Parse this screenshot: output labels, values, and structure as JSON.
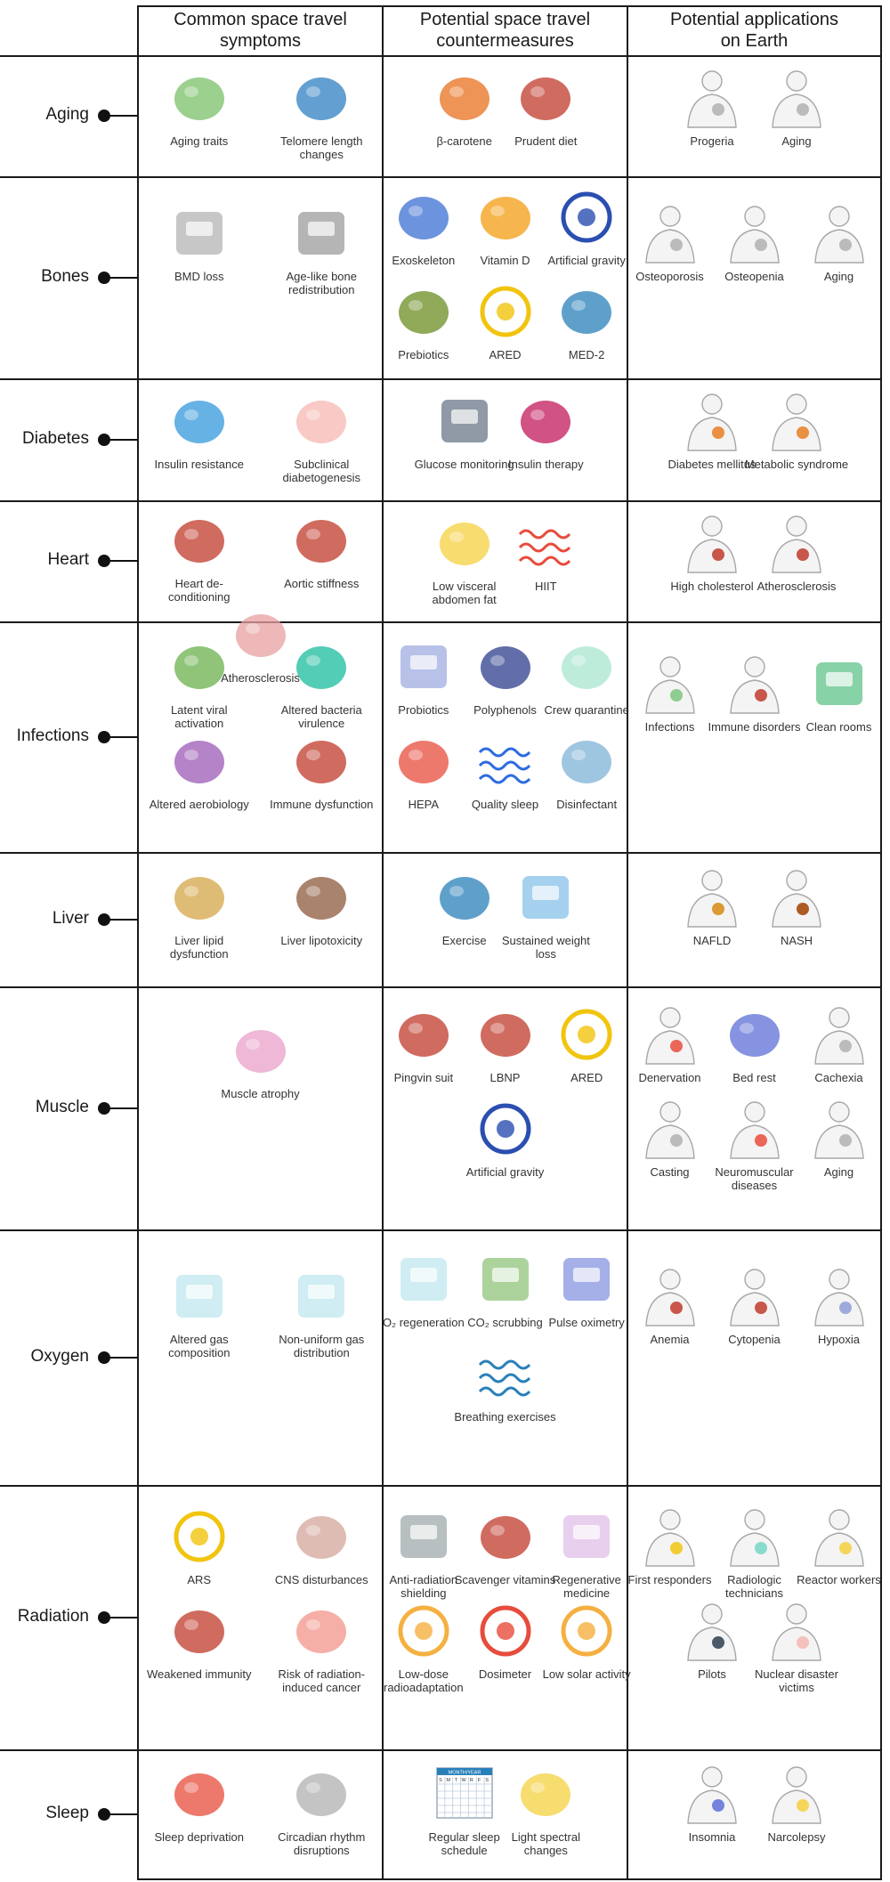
{
  "headers": {
    "symptoms": "Common space travel\nsymptoms",
    "countermeasures": "Potential space travel\ncountermeasures",
    "applications": "Potential applications\non Earth"
  },
  "rows": [
    {
      "label": "Aging",
      "symptoms": [
        {
          "label": "Aging traits",
          "icon": "aging-traits-icon",
          "color": "#7ac06a"
        },
        {
          "label": "Telomere length changes",
          "icon": "chromosome-icon",
          "color": "#2f7fc1"
        }
      ],
      "countermeasures": [
        {
          "label": "β-carotene",
          "icon": "pumpkin-icon",
          "color": "#e8701e"
        },
        {
          "label": "Prudent diet",
          "icon": "vegetables-icon",
          "color": "#c0392b"
        }
      ],
      "applications": [
        {
          "label": "Progeria",
          "icon": "infant-clock-icon",
          "color": "#b0b0b0"
        },
        {
          "label": "Aging",
          "icon": "person-clock-icon",
          "color": "#b0b0b0"
        }
      ]
    },
    {
      "label": "Bones",
      "symptoms": [
        {
          "label": "BMD loss",
          "icon": "bone-cube-icon",
          "color": "#9a9a9a"
        },
        {
          "label": "Age-like bone redistribution",
          "icon": "bone-cube-icon",
          "color": "#7a7a7a"
        }
      ],
      "countermeasures": [
        {
          "label": "Exoskeleton",
          "icon": "exoskeleton-icon",
          "color": "#3b6fd1"
        },
        {
          "label": "Vitamin D",
          "icon": "orange-slice-icon",
          "color": "#f39c12"
        },
        {
          "label": "Artificial gravity",
          "icon": "gravity-wheel-icon",
          "color": "#2b4fb0"
        },
        {
          "label": "Prebiotics",
          "icon": "root-vegetable-icon",
          "color": "#6b8e23"
        },
        {
          "label": "ARED",
          "icon": "squat-rack-icon",
          "color": "#f1c40f"
        },
        {
          "label": "MED-2",
          "icon": "exercise-machine-icon",
          "color": "#2980b9"
        }
      ],
      "applications": [
        {
          "label": "Osteoporosis",
          "icon": "ribcage-icon",
          "color": "#b0b0b0"
        },
        {
          "label": "Osteopenia",
          "icon": "ribcage-icon",
          "color": "#b0b0b0"
        },
        {
          "label": "Aging",
          "icon": "person-clock-icon",
          "color": "#b0b0b0"
        }
      ]
    },
    {
      "label": "Diabetes",
      "symptoms": [
        {
          "label": "Insulin resistance",
          "icon": "insulin-receptor-icon",
          "color": "#3498db"
        },
        {
          "label": "Subclinical diabetogenesis",
          "icon": "pancreas-icon",
          "color": "#f5b7b1"
        }
      ],
      "countermeasures": [
        {
          "label": "Glucose monitoring",
          "icon": "glucometer-icon",
          "color": "#34495e"
        },
        {
          "label": "Insulin therapy",
          "icon": "insulin-pen-icon",
          "color": "#c2185b"
        }
      ],
      "applications": [
        {
          "label": "Diabetes mellitus",
          "icon": "torso-pancreas-icon",
          "color": "#e67e22"
        },
        {
          "label": "Metabolic syndrome",
          "icon": "torso-organs-icon",
          "color": "#e67e22"
        }
      ]
    },
    {
      "label": "Heart",
      "symptoms": [
        {
          "label": "Heart de-conditioning",
          "icon": "heart-icon",
          "color": "#c0392b"
        },
        {
          "label": "Aortic stiffness",
          "icon": "artery-section-icon",
          "color": "#c0392b"
        },
        {
          "label": "Atherosclerosis",
          "icon": "plaque-artery-icon",
          "color": "#e8a0a0"
        }
      ],
      "countermeasures": [
        {
          "label": "Low visceral abdomen fat",
          "icon": "intestine-fat-icon",
          "color": "#f4d03f"
        },
        {
          "label": "HIIT",
          "icon": "ecg-icon",
          "color": "#e74c3c"
        }
      ],
      "applications": [
        {
          "label": "High cholesterol",
          "icon": "torso-heart-icon",
          "color": "#c0392b"
        },
        {
          "label": "Atherosclerosis",
          "icon": "torso-heart-icon",
          "color": "#c0392b"
        }
      ]
    },
    {
      "label": "Infections",
      "symptoms": [
        {
          "label": "Latent viral activation",
          "icon": "virus-icon",
          "color": "#6ab04c"
        },
        {
          "label": "Altered bacteria virulence",
          "icon": "bacteria-icon",
          "color": "#1abc9c"
        },
        {
          "label": "Altered aerobiology",
          "icon": "fungus-icon",
          "color": "#9b59b6"
        },
        {
          "label": "Immune dysfunction",
          "icon": "antibody-icon",
          "color": "#c0392b"
        }
      ],
      "countermeasures": [
        {
          "label": "Probiotics",
          "icon": "yogurt-icon",
          "color": "#7f8fd6"
        },
        {
          "label": "Polyphenols",
          "icon": "blueberries-icon",
          "color": "#2c3e8c"
        },
        {
          "label": "Crew quarantine",
          "icon": "mask-icon",
          "color": "#a8e6cf"
        },
        {
          "label": "HEPA",
          "icon": "filter-funnel-icon",
          "color": "#e74c3c"
        },
        {
          "label": "Quality sleep",
          "icon": "zzz-icon",
          "color": "#2d6cdf"
        },
        {
          "label": "Disinfectant",
          "icon": "spray-bottle-icon",
          "color": "#7fb3d5"
        }
      ],
      "applications": [
        {
          "label": "Infections",
          "icon": "coughing-person-icon",
          "color": "#7dc47d"
        },
        {
          "label": "Immune disorders",
          "icon": "person-antibody-icon",
          "color": "#c0392b"
        },
        {
          "label": "Clean rooms",
          "icon": "hospital-icon",
          "color": "#27ae60"
        }
      ]
    },
    {
      "label": "Liver",
      "symptoms": [
        {
          "label": "Liver lipid dysfunction",
          "icon": "fatty-liver-icon",
          "color": "#d4a547"
        },
        {
          "label": "Liver lipotoxicity",
          "icon": "damaged-liver-icon",
          "color": "#8e5a3c"
        }
      ],
      "countermeasures": [
        {
          "label": "Exercise",
          "icon": "treadmill-icon",
          "color": "#2980b9"
        },
        {
          "label": "Sustained weight loss",
          "icon": "scale-icon",
          "color": "#5dade2"
        }
      ],
      "applications": [
        {
          "label": "NAFLD",
          "icon": "person-liver-icon",
          "color": "#d68910"
        },
        {
          "label": "NASH",
          "icon": "person-liver-icon",
          "color": "#a04000"
        }
      ]
    },
    {
      "label": "Muscle",
      "symptoms": [
        {
          "label": "Muscle atrophy",
          "icon": "muscle-fiber-icon",
          "color": "#e8a0c8"
        }
      ],
      "countermeasures": [
        {
          "label": "Pingvin suit",
          "icon": "space-suit-icon",
          "color": "#c0392b"
        },
        {
          "label": "LBNP",
          "icon": "suit-arrows-icon",
          "color": "#c0392b"
        },
        {
          "label": "ARED",
          "icon": "squat-rack-icon",
          "color": "#f1c40f"
        },
        {
          "label": "Artificial gravity",
          "icon": "gravity-wheel-icon",
          "color": "#2b4fb0"
        }
      ],
      "applications": [
        {
          "label": "Denervation",
          "icon": "person-nerve-icon",
          "color": "#e74c3c"
        },
        {
          "label": "Bed rest",
          "icon": "bed-rest-icon",
          "color": "#5d6fd6"
        },
        {
          "label": "Cachexia",
          "icon": "thin-person-icon",
          "color": "#b0b0b0"
        },
        {
          "label": "Casting",
          "icon": "arm-sling-icon",
          "color": "#b0b0b0"
        },
        {
          "label": "Neuromuscular diseases",
          "icon": "person-muscle-icon",
          "color": "#e74c3c"
        },
        {
          "label": "Aging",
          "icon": "person-clock-icon",
          "color": "#b0b0b0"
        }
      ]
    },
    {
      "label": "Oxygen",
      "symptoms": [
        {
          "label": "Altered gas composition",
          "icon": "plant-box-arrows-icon",
          "color": "#a9dfe8"
        },
        {
          "label": "Non-uniform gas distribution",
          "icon": "plant-boxes-arrows-icon",
          "color": "#a9dfe8"
        }
      ],
      "countermeasures": [
        {
          "label": "O₂ regeneration",
          "icon": "plant-box-arrows-icon",
          "color": "#a9dfe8"
        },
        {
          "label": "CO₂ scrubbing",
          "icon": "sponge-block-icon",
          "color": "#6ab04c"
        },
        {
          "label": "Pulse oximetry",
          "icon": "oximeter-icon",
          "color": "#5d6fd6"
        },
        {
          "label": "Breathing exercises",
          "icon": "waves-icon",
          "color": "#2980b9"
        }
      ],
      "applications": [
        {
          "label": "Anemia",
          "icon": "hand-drop-icon",
          "color": "#c0392b"
        },
        {
          "label": "Cytopenia",
          "icon": "hand-cell-icon",
          "color": "#c0392b"
        },
        {
          "label": "Hypoxia",
          "icon": "blue-hand-icon",
          "color": "#8e9cd6"
        }
      ]
    },
    {
      "label": "Radiation",
      "symptoms": [
        {
          "label": "ARS",
          "icon": "radiation-symbol-icon",
          "color": "#f1c40f"
        },
        {
          "label": "CNS disturbances",
          "icon": "brain-icon",
          "color": "#d4a59a"
        },
        {
          "label": "Weakened immunity",
          "icon": "antibody-icon",
          "color": "#c0392b"
        },
        {
          "label": "Risk of radiation-induced cancer",
          "icon": "tumor-icon",
          "color": "#f1948a"
        }
      ],
      "countermeasures": [
        {
          "label": "Anti-radiation shielding",
          "icon": "shield-panel-icon",
          "color": "#7f8c8d"
        },
        {
          "label": "Scavenger vitamins",
          "icon": "vegetables-icon",
          "color": "#c0392b"
        },
        {
          "label": "Regenerative medicine",
          "icon": "petri-dish-icon",
          "color": "#d7a8e0"
        },
        {
          "label": "Low-dose radioadaptation",
          "icon": "sun-icon",
          "color": "#f5b041"
        },
        {
          "label": "Dosimeter",
          "icon": "gauge-icon",
          "color": "#e74c3c"
        },
        {
          "label": "Low solar activity",
          "icon": "sun-spectrum-icon",
          "color": "#f5b041"
        }
      ],
      "applications": [
        {
          "label": "First responders",
          "icon": "responder-icon",
          "color": "#f1c40f"
        },
        {
          "label": "Radiologic technicians",
          "icon": "technician-icon",
          "color": "#76d7c4"
        },
        {
          "label": "Reactor workers",
          "icon": "hazmat-icon",
          "color": "#f4d03f"
        },
        {
          "label": "Pilots",
          "icon": "pilot-icon",
          "color": "#2c3e50"
        },
        {
          "label": "Nuclear disaster victims",
          "icon": "victim-icon",
          "color": "#f5b7b1"
        }
      ]
    },
    {
      "label": "Sleep",
      "symptoms": [
        {
          "label": "Sleep deprivation",
          "icon": "no-sleep-icon",
          "color": "#e74c3c"
        },
        {
          "label": "Circadian rhythm disruptions",
          "icon": "brain-bulb-icon",
          "color": "#b0b0b0"
        }
      ],
      "countermeasures": [
        {
          "label": "Regular sleep schedule",
          "icon": "calendar-icon",
          "color": "#2980b9",
          "calendar_title": "MONTH/YEAR",
          "weekdays": [
            "S",
            "M",
            "T",
            "W",
            "R",
            "F",
            "S"
          ]
        },
        {
          "label": "Light spectral changes",
          "icon": "bulbs-icon",
          "color": "#f4d03f"
        }
      ],
      "applications": [
        {
          "label": "Insomnia",
          "icon": "person-bulb-icon",
          "color": "#5d6fd6"
        },
        {
          "label": "Narcolepsy",
          "icon": "person-bulb-icon",
          "color": "#f4d03f"
        }
      ]
    }
  ]
}
